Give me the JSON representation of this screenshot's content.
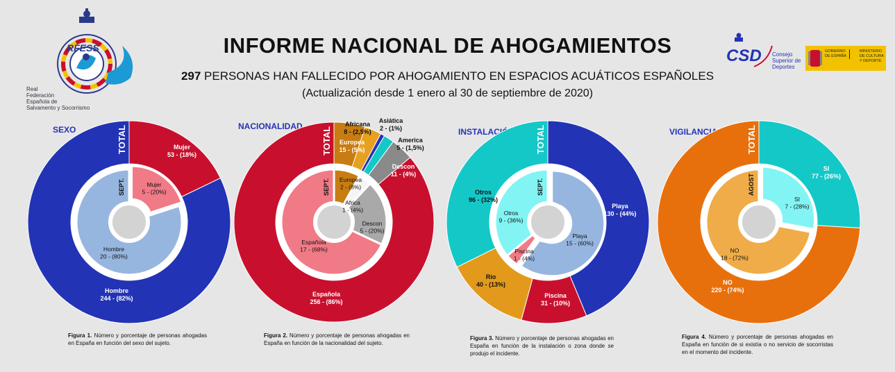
{
  "header": {
    "title": "INFORME NACIONAL DE AHOGAMIENTOS",
    "subtitle_count": "297",
    "subtitle_rest": " PERSONAS HAN FALLECIDO POR AHOGAMIENTO EN ESPACIOS ACUÁTICOS ESPAÑOLES",
    "update": "(Actualización desde 1 enero al 30 de septiembre de 2020)"
  },
  "logos": {
    "rfess_name": [
      "Real",
      "Federación",
      "Española de",
      "Salvamento y Socorrismo"
    ],
    "rfess_mark": "RFESS",
    "csd_mark": "CSD",
    "csd_name": [
      "Consejo",
      "Superior de",
      "Deportes"
    ],
    "gov_left": [
      "GOBIERNO",
      "DE ESPAÑA"
    ],
    "gov_right": [
      "MINISTERIO",
      "DE CULTURA",
      "Y DEPORTE"
    ]
  },
  "chart_data": [
    {
      "type": "pie",
      "title": "SEXO",
      "outer_label": "TOTAL",
      "inner_label": "SEPT.",
      "outer": [
        {
          "name": "Mujer",
          "value": 53,
          "pct": "18%",
          "color": "#c8102e"
        },
        {
          "name": "Hombre",
          "value": 244,
          "pct": "82%",
          "color": "#2333b5"
        }
      ],
      "inner": [
        {
          "name": "Mujer",
          "value": 5,
          "pct": "20%",
          "color": "#f07a86"
        },
        {
          "name": "Hombre",
          "value": 20,
          "pct": "80%",
          "color": "#97b6df"
        }
      ],
      "caption_num": "Figura 1.",
      "caption": " Número y porcentaje de personas ahogadas en España en función del sexo del sujeto."
    },
    {
      "type": "pie",
      "title": "NACIONALIDAD",
      "outer_label": "TOTAL",
      "inner_label": "SEPT.",
      "outer": [
        {
          "name": "Europea",
          "value": 15,
          "pct": "5%",
          "color": "#c87c12"
        },
        {
          "name": "Africana",
          "value": 8,
          "pct": "2,5%",
          "color": "#e8a020"
        },
        {
          "name": "Asiática",
          "value": 2,
          "pct": "1%",
          "color": "#2333b5"
        },
        {
          "name": "America",
          "value": 5,
          "pct": "1,5%",
          "color": "#14c8c8"
        },
        {
          "name": "Descon",
          "value": 11,
          "pct": "4%",
          "color": "#8a8a8a"
        },
        {
          "name": "Española",
          "value": 256,
          "pct": "86%",
          "color": "#c8102e"
        }
      ],
      "inner": [
        {
          "name": "Europea",
          "value": 2,
          "pct": "8%",
          "color": "#c87c12"
        },
        {
          "name": "Africa",
          "value": 1,
          "pct": "4%",
          "color": "#f5f5f5"
        },
        {
          "name": "Descon",
          "value": 5,
          "pct": "20%",
          "color": "#a9a9a9"
        },
        {
          "name": "Española",
          "value": 17,
          "pct": "68%",
          "color": "#f07a86"
        }
      ],
      "caption_num": "Figura 2.",
      "caption": " Número y porcentaje de personas ahogadas en España en función de la nacionalidad del sujeto."
    },
    {
      "type": "pie",
      "title": "INSTALACIÓN",
      "outer_label": "TOTAL",
      "inner_label": "SEPT.",
      "outer": [
        {
          "name": "Playa",
          "value": 130,
          "pct": "44%",
          "color": "#2333b5"
        },
        {
          "name": "Piscina",
          "value": 31,
          "pct": "10%",
          "color": "#c8102e"
        },
        {
          "name": "Río",
          "value": 40,
          "pct": "13%",
          "color": "#e39a1c"
        },
        {
          "name": "Otros",
          "value": 96,
          "pct": "32%",
          "color": "#14c8c8"
        }
      ],
      "inner": [
        {
          "name": "Playa",
          "value": 15,
          "pct": "60%",
          "color": "#97b6df"
        },
        {
          "name": "Piscina",
          "value": 1,
          "pct": "4%",
          "color": "#f07a86"
        },
        {
          "name": "Otros",
          "value": 9,
          "pct": "36%",
          "color": "#82f4f4"
        }
      ],
      "caption_num": "Figura 3.",
      "caption": " Número y porcentaje de personas ahogadas en España en función de la instalación o zona donde se produjo el incidente."
    },
    {
      "type": "pie",
      "title": "VIGILANCIA",
      "outer_label": "TOTAL",
      "inner_label": "AGOST",
      "outer": [
        {
          "name": "SI",
          "value": 77,
          "pct": "26%",
          "color": "#14c8c8"
        },
        {
          "name": "NO",
          "value": 220,
          "pct": "74%",
          "color": "#e8700c"
        }
      ],
      "inner": [
        {
          "name": "SI",
          "value": 7,
          "pct": "28%",
          "color": "#82f4f4"
        },
        {
          "name": "NO",
          "value": 18,
          "pct": "72%",
          "color": "#f0ac48"
        }
      ],
      "caption_num": "Figura 4.",
      "caption": " Número y porcentaje de personas ahogadas en España en función de si existía o no servicio de socorristas en el momento del incidente."
    }
  ]
}
